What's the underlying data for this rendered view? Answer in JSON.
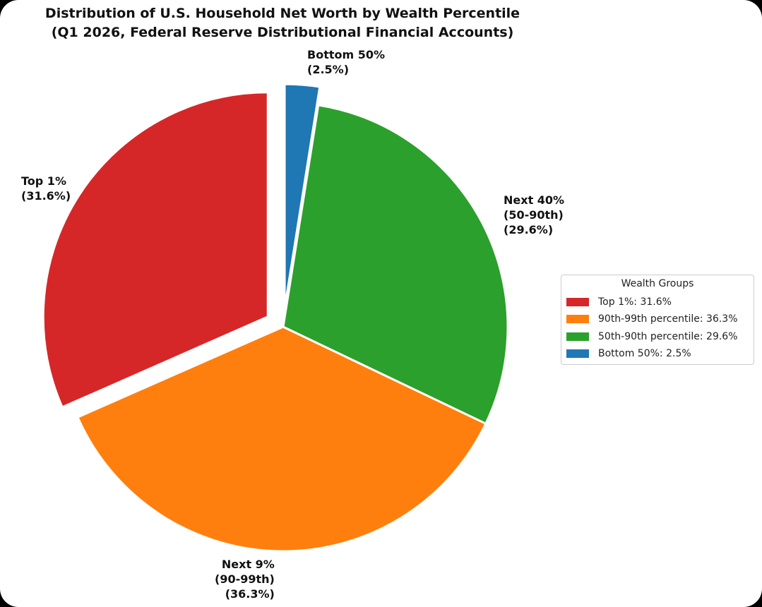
{
  "chart_data": {
    "type": "pie",
    "title": "Distribution of U.S. Household Net Worth by Wealth Percentile",
    "subtitle": "(Q1 2026, Federal Reserve Distributional Financial Accounts)",
    "slices": [
      {
        "key": "top1",
        "label_lines": [
          "Top 1%",
          "(31.6%)"
        ],
        "value": 31.6,
        "color": "#d62728",
        "exploded": true
      },
      {
        "key": "p90_99",
        "label_lines": [
          "Next 9%",
          "(90-99th)",
          "(36.3%)"
        ],
        "value": 36.3,
        "color": "#ff7f0e",
        "exploded": false
      },
      {
        "key": "p50_90",
        "label_lines": [
          "Next 40%",
          "(50-90th)",
          "(29.6%)"
        ],
        "value": 29.6,
        "color": "#2ca02c",
        "exploded": false
      },
      {
        "key": "bottom50",
        "label_lines": [
          "Bottom 50%",
          "(2.5%)"
        ],
        "value": 2.5,
        "color": "#1f77b4",
        "exploded": true
      }
    ],
    "start_angle_deg": 90,
    "direction": "counterclockwise",
    "legend": {
      "title": "Wealth Groups",
      "placement": "right",
      "entries": [
        {
          "label": "Top 1%: 31.6%",
          "color": "#d62728"
        },
        {
          "label": "90th-99th percentile: 36.3%",
          "color": "#ff7f0e"
        },
        {
          "label": "50th-90th percentile: 29.6%",
          "color": "#2ca02c"
        },
        {
          "label": "Bottom 50%: 2.5%",
          "color": "#1f77b4"
        }
      ]
    }
  }
}
